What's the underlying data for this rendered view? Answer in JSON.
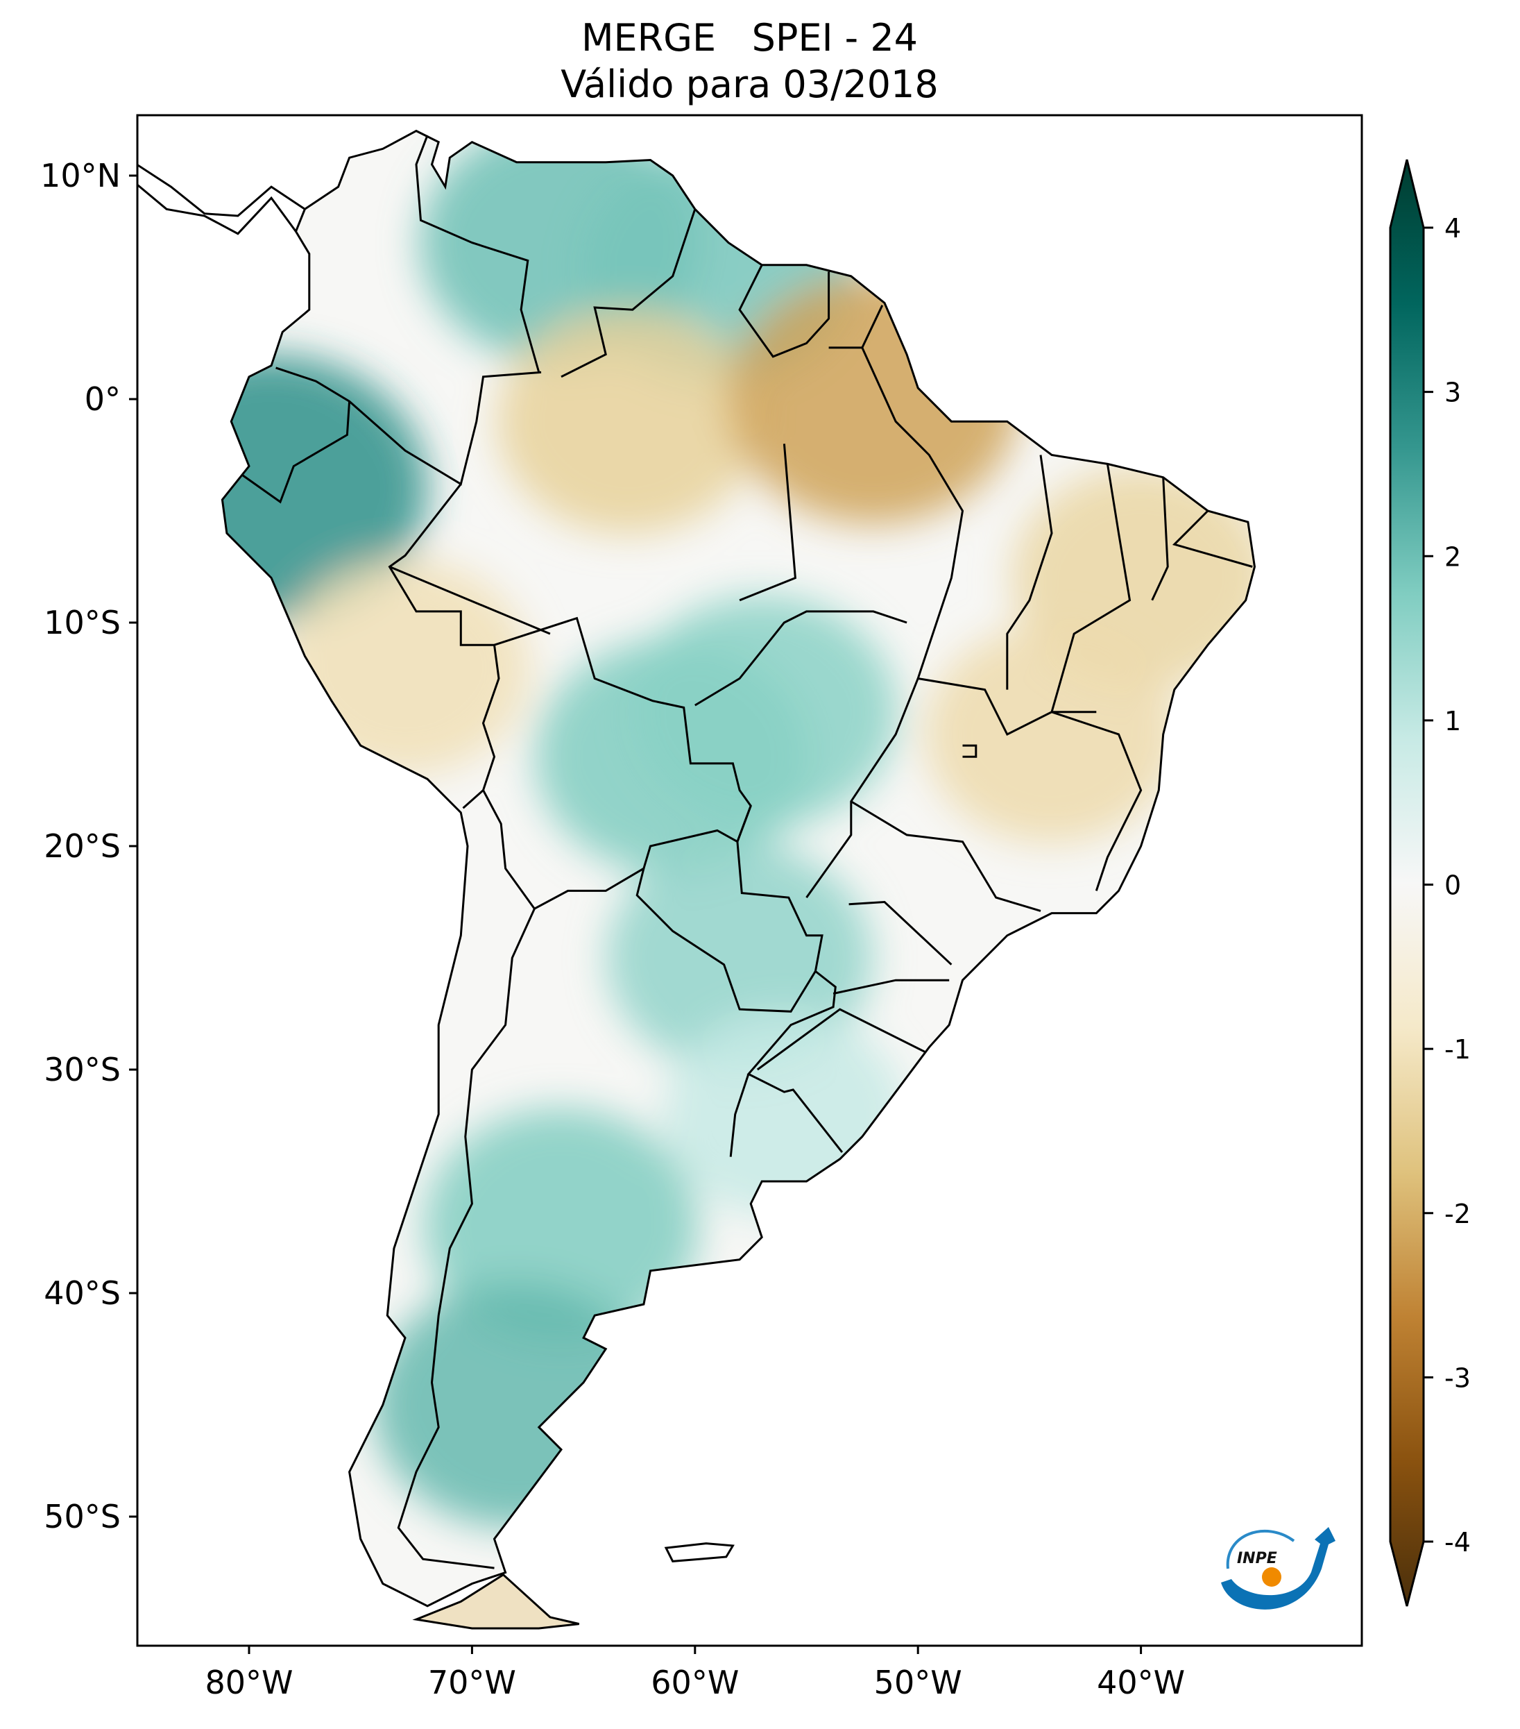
{
  "chart_data": {
    "type": "heatmap",
    "title": "MERGE   SPEI - 24",
    "subtitle": "Válido para 03/2018",
    "variable": "SPEI - 24",
    "dataset": "MERGE",
    "valid_date": "03/2018",
    "region": "South America",
    "xlim": [
      -85,
      -30
    ],
    "ylim": [
      -56,
      12.7
    ],
    "x_ticks": [
      {
        "value": -80,
        "label": "80°W"
      },
      {
        "value": -70,
        "label": "70°W"
      },
      {
        "value": -60,
        "label": "60°W"
      },
      {
        "value": -50,
        "label": "50°W"
      },
      {
        "value": -40,
        "label": "40°W"
      }
    ],
    "y_ticks": [
      {
        "value": 10,
        "label": "10°N"
      },
      {
        "value": 0,
        "label": "0°"
      },
      {
        "value": -10,
        "label": "10°S"
      },
      {
        "value": -20,
        "label": "20°S"
      },
      {
        "value": -30,
        "label": "30°S"
      },
      {
        "value": -40,
        "label": "40°S"
      },
      {
        "value": -50,
        "label": "50°S"
      }
    ],
    "colorbar": {
      "colormap": "BrBG",
      "range": [
        -4,
        4
      ],
      "extend": "both",
      "ticks": [
        {
          "value": 4,
          "label": "4"
        },
        {
          "value": 3,
          "label": "3"
        },
        {
          "value": 2,
          "label": "2"
        },
        {
          "value": 1,
          "label": "1"
        },
        {
          "value": 0,
          "label": "0"
        },
        {
          "value": -1,
          "label": "-1"
        },
        {
          "value": -2,
          "label": "-2"
        },
        {
          "value": -3,
          "label": "-3"
        },
        {
          "value": -4,
          "label": "-4"
        }
      ],
      "stops": [
        "#4a2f0b",
        "#8a520f",
        "#bf8233",
        "#dfc27d",
        "#f5e9c9",
        "#f7f7f7",
        "#c7eae5",
        "#80cdc1",
        "#35978f",
        "#01665e",
        "#003c30"
      ]
    },
    "regions": [
      {
        "name": "Venezuela / Colombia north",
        "lon": -66,
        "lat": 7,
        "value": 1.8
      },
      {
        "name": "Guyana",
        "lon": -59,
        "lat": 6,
        "value": 1.7
      },
      {
        "name": "Ecuador coast",
        "lon": -79,
        "lat": -4,
        "value": 2.5
      },
      {
        "name": "Amazonas north",
        "lon": -63,
        "lat": -1,
        "value": -1.3
      },
      {
        "name": "Amapá/Pará",
        "lon": -52,
        "lat": 0,
        "value": -2.0
      },
      {
        "name": "Northeast Brazil",
        "lon": -40,
        "lat": -8,
        "value": -1.2
      },
      {
        "name": "Bahia / Minas",
        "lon": -44,
        "lat": -15,
        "value": -1.1
      },
      {
        "name": "Bolivia",
        "lon": -61,
        "lat": -16,
        "value": 1.6
      },
      {
        "name": "Mato Grosso",
        "lon": -57,
        "lat": -14,
        "value": 1.5
      },
      {
        "name": "Paraguay / NE Argentina",
        "lon": -58,
        "lat": -25,
        "value": 1.4
      },
      {
        "name": "Patagonia north",
        "lon": -66,
        "lat": -37,
        "value": 1.6
      },
      {
        "name": "Patagonia south",
        "lon": -68,
        "lat": -45,
        "value": 1.9
      },
      {
        "name": "Peru south",
        "lon": -73,
        "lat": -12,
        "value": -1.0
      },
      {
        "name": "Uruguay",
        "lon": -56,
        "lat": -32,
        "value": 0.8
      }
    ]
  },
  "logo": {
    "text": "INPE"
  }
}
